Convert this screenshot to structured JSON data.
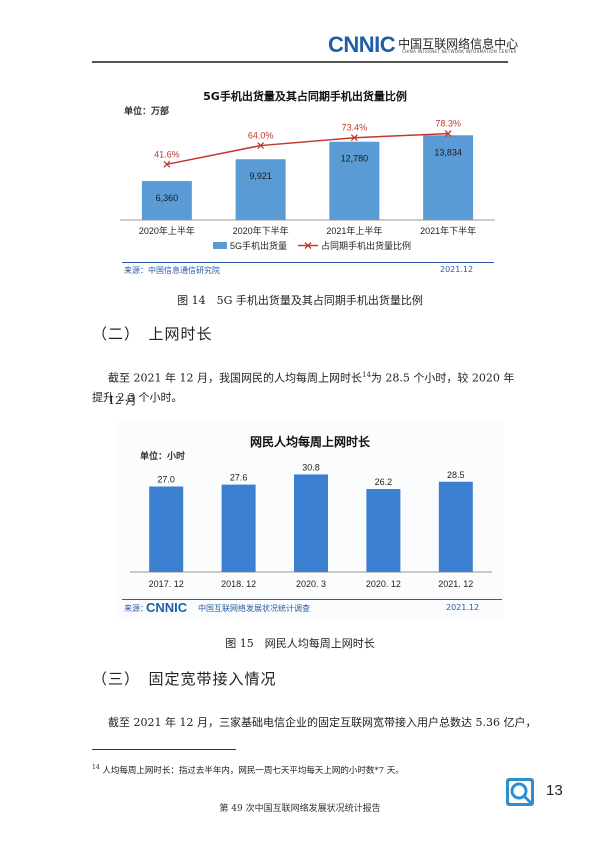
{
  "header": {
    "logo_text": "CNNIC",
    "logo_cn": "中国互联网络信息中心",
    "logo_en": "CHINA INTERNET NETWORK INFORMATION CENTER"
  },
  "chart1": {
    "title": "5G手机出货量及其占同期手机出货量比例",
    "unit": "单位：万部",
    "source": "来源：中国信息通信研究院",
    "date": "2021.12",
    "chart_data": {
      "type": "bar",
      "categories": [
        "2020年上半年",
        "2020年下半年",
        "2021年上半年",
        "2021年下半年"
      ],
      "series": [
        {
          "name": "5G手机出货量",
          "type": "bar",
          "values": [
            6360,
            9921,
            12780,
            13834
          ],
          "labels": [
            "6,360",
            "9,921",
            "12,780",
            "13,834"
          ]
        },
        {
          "name": "占同期手机出货量比例",
          "type": "line",
          "values": [
            41.6,
            64.0,
            73.4,
            78.3
          ],
          "labels": [
            "41.6%",
            "64.0%",
            "73.4%",
            "78.3%"
          ]
        }
      ],
      "colors": {
        "bar": "#5b9bd5",
        "line": "#c0392b"
      },
      "legend": "bottom"
    }
  },
  "caption1": "图 14　5G 手机出货量及其占同期手机出货量比例",
  "section2": "（二）　上网时长",
  "para1_line1": "截至 2021 年 12 月，我国网民的人均每周上网时长",
  "para1_sup": "14",
  "para1_line1b": "为 28.5 个小时，较 2020 年 12 月",
  "para1_line2": "提升 2.3 个小时。",
  "chart2": {
    "title": "网民人均每周上网时长",
    "unit": "单位：小时",
    "source_logo": "CNNIC",
    "source": "中国互联网络发展状况统计调查",
    "source_prefix": "来源：",
    "date": "2021.12",
    "chart_data": {
      "type": "bar",
      "categories": [
        "2017. 12",
        "2018. 12",
        "2020. 3",
        "2020. 12",
        "2021. 12"
      ],
      "values": [
        27.0,
        27.6,
        30.8,
        26.2,
        28.5
      ],
      "labels": [
        "27.0",
        "27.6",
        "30.8",
        "26.2",
        "28.5"
      ],
      "colors": {
        "bar": "#3c7fd1"
      }
    }
  },
  "caption2": "图 15　网民人均每周上网时长",
  "section3": "（三）　固定宽带接入情况",
  "para2": "截至 2021 年 12 月，三家基础电信企业的固定互联网宽带接入用户总数达 5.36 亿户，",
  "footnote_mark": "14",
  "footnote": "人均每周上网时长：指过去半年内，网民一周七天平均每天上网的小时数*7 天。",
  "footer": "第 49 次中国互联网络发展状况统计报告",
  "page_number": "13"
}
